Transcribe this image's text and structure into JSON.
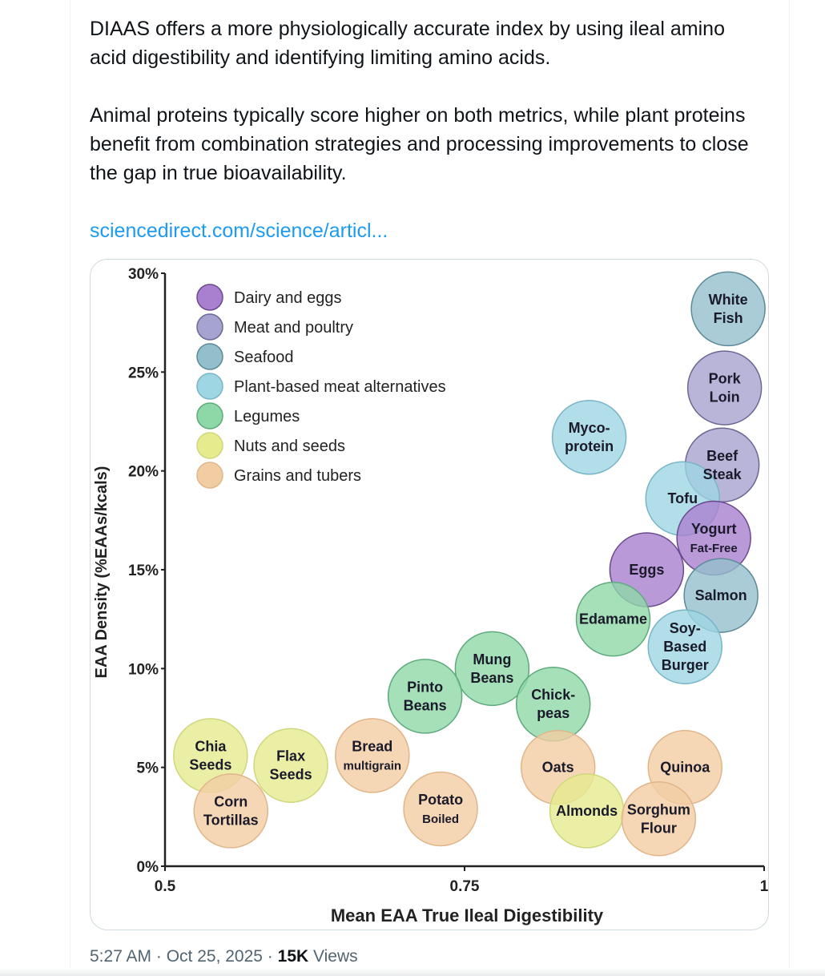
{
  "tweet": {
    "paragraphs": [
      "DIAAS offers a more physiologically accurate index by using ileal amino acid digestibility and identifying limiting amino acids.",
      "Animal proteins typically score higher on both metrics, while plant proteins benefit from combination strategies and processing improvements to close the gap in true bioavailability."
    ],
    "link_text": "sciencedirect.com/science/articl...",
    "timestamp": "5:27 AM · Oct 25, 2025",
    "separator": " · ",
    "views_count": "15K",
    "views_label": " Views"
  },
  "chart_data": {
    "type": "scatter",
    "subtype": "bubble",
    "title": "",
    "xlabel": "Mean EAA True Ileal Digestibility",
    "ylabel": "EAA Density (%EAAs/kcals)",
    "xlim": [
      0.5,
      1
    ],
    "ylim": [
      0,
      30
    ],
    "x_ticks": [
      0.5,
      0.75,
      1
    ],
    "x_tick_labels": [
      "0.5",
      "0.75",
      "1"
    ],
    "y_ticks": [
      0,
      5,
      10,
      15,
      20,
      25,
      30
    ],
    "y_tick_labels": [
      "0%",
      "5%",
      "10%",
      "15%",
      "20%",
      "25%",
      "30%"
    ],
    "grid": false,
    "legend_position": "top-left",
    "categories": [
      {
        "name": "Dairy and eggs",
        "color": "#a97fcf",
        "stroke": "#6a4a8c"
      },
      {
        "name": "Meat and poultry",
        "color": "#a6a3d0",
        "stroke": "#6c6894"
      },
      {
        "name": "Seafood",
        "color": "#93bfcc",
        "stroke": "#5d8a98"
      },
      {
        "name": "Plant-based meat alternatives",
        "color": "#9fd6e4",
        "stroke": "#78b5c6"
      },
      {
        "name": "Legumes",
        "color": "#8ed8a8",
        "stroke": "#5faa7c"
      },
      {
        "name": "Nuts and seeds",
        "color": "#e6eb8e",
        "stroke": "#cfd77c"
      },
      {
        "name": "Grains and tubers",
        "color": "#f2cda4",
        "stroke": "#e0b58a"
      }
    ],
    "points": [
      {
        "label": [
          "White",
          "Fish"
        ],
        "category": "Seafood",
        "x": 0.97,
        "y": 28.2
      },
      {
        "label": [
          "Pork",
          "Loin"
        ],
        "category": "Meat and poultry",
        "x": 0.967,
        "y": 24.2
      },
      {
        "label": [
          "Beef",
          "Steak"
        ],
        "category": "Meat and poultry",
        "x": 0.965,
        "y": 20.3
      },
      {
        "label": [
          "Myco-",
          "protein"
        ],
        "category": "Plant-based meat alternatives",
        "x": 0.854,
        "y": 21.7
      },
      {
        "label": [
          "Tofu"
        ],
        "category": "Plant-based meat alternatives",
        "x": 0.932,
        "y": 18.6
      },
      {
        "label": [
          "Yogurt",
          "Fat-Free"
        ],
        "category": "Dairy and eggs",
        "x": 0.958,
        "y": 16.6
      },
      {
        "label": [
          "Eggs"
        ],
        "category": "Dairy and eggs",
        "x": 0.902,
        "y": 15.0
      },
      {
        "label": [
          "Salmon"
        ],
        "category": "Seafood",
        "x": 0.964,
        "y": 13.7
      },
      {
        "label": [
          "Edamame"
        ],
        "category": "Legumes",
        "x": 0.874,
        "y": 12.5
      },
      {
        "label": [
          "Soy-",
          "Based",
          "Burger"
        ],
        "category": "Plant-based meat alternatives",
        "x": 0.934,
        "y": 11.1
      },
      {
        "label": [
          "Mung",
          "Beans"
        ],
        "category": "Legumes",
        "x": 0.773,
        "y": 10.0
      },
      {
        "label": [
          "Pinto",
          "Beans"
        ],
        "category": "Legumes",
        "x": 0.717,
        "y": 8.6
      },
      {
        "label": [
          "Chick-",
          "peas"
        ],
        "category": "Legumes",
        "x": 0.824,
        "y": 8.2
      },
      {
        "label": [
          "Chia",
          "Seeds"
        ],
        "category": "Nuts and seeds",
        "x": 0.538,
        "y": 5.6
      },
      {
        "label": [
          "Flax",
          "Seeds"
        ],
        "category": "Nuts and seeds",
        "x": 0.605,
        "y": 5.1
      },
      {
        "label": [
          "Bread",
          "multigrain"
        ],
        "category": "Grains and tubers",
        "x": 0.673,
        "y": 5.6
      },
      {
        "label": [
          "Corn",
          "Tortillas"
        ],
        "category": "Grains and tubers",
        "x": 0.555,
        "y": 2.8
      },
      {
        "label": [
          "Potato",
          "Boiled"
        ],
        "category": "Grains and tubers",
        "x": 0.73,
        "y": 2.9
      },
      {
        "label": [
          "Oats"
        ],
        "category": "Grains and tubers",
        "x": 0.828,
        "y": 5.0
      },
      {
        "label": [
          "Almonds"
        ],
        "category": "Nuts and seeds",
        "x": 0.852,
        "y": 2.8
      },
      {
        "label": [
          "Quinoa"
        ],
        "category": "Grains and tubers",
        "x": 0.934,
        "y": 5.0
      },
      {
        "label": [
          "Sorghum",
          "Flour"
        ],
        "category": "Grains and tubers",
        "x": 0.912,
        "y": 2.4
      }
    ]
  }
}
